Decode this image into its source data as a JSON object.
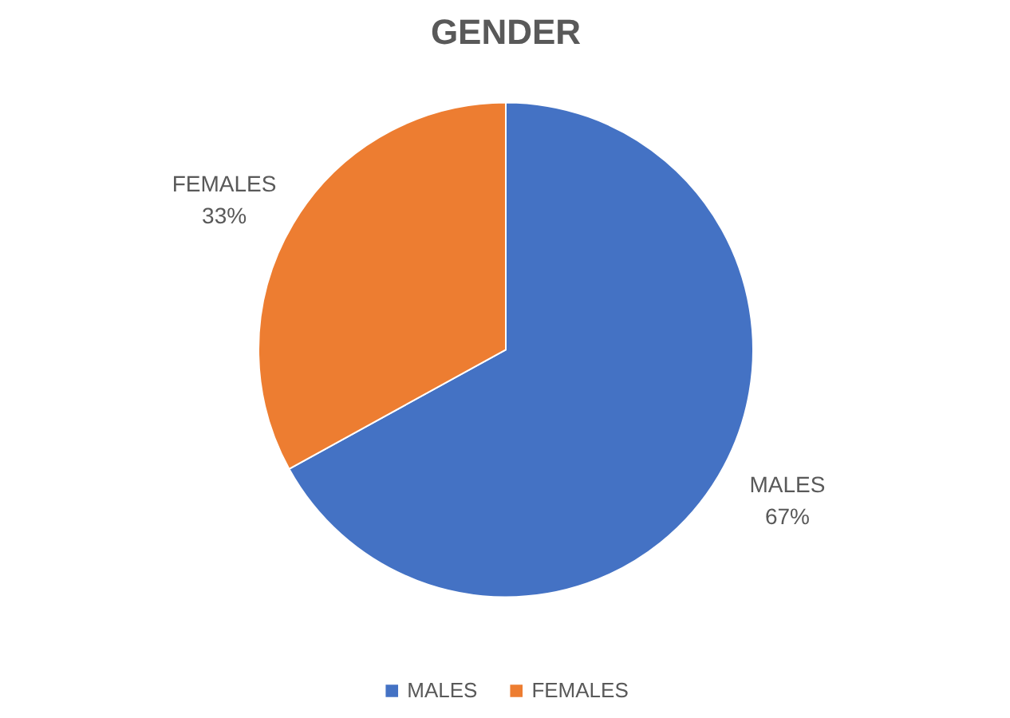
{
  "chart_data": {
    "type": "pie",
    "title": "GENDER",
    "categories": [
      "MALES",
      "FEMALES"
    ],
    "values": [
      67,
      33
    ],
    "colors": [
      "#4472c4",
      "#ed7d31"
    ],
    "value_labels": [
      "67%",
      "33%"
    ],
    "legend": "bottom"
  }
}
